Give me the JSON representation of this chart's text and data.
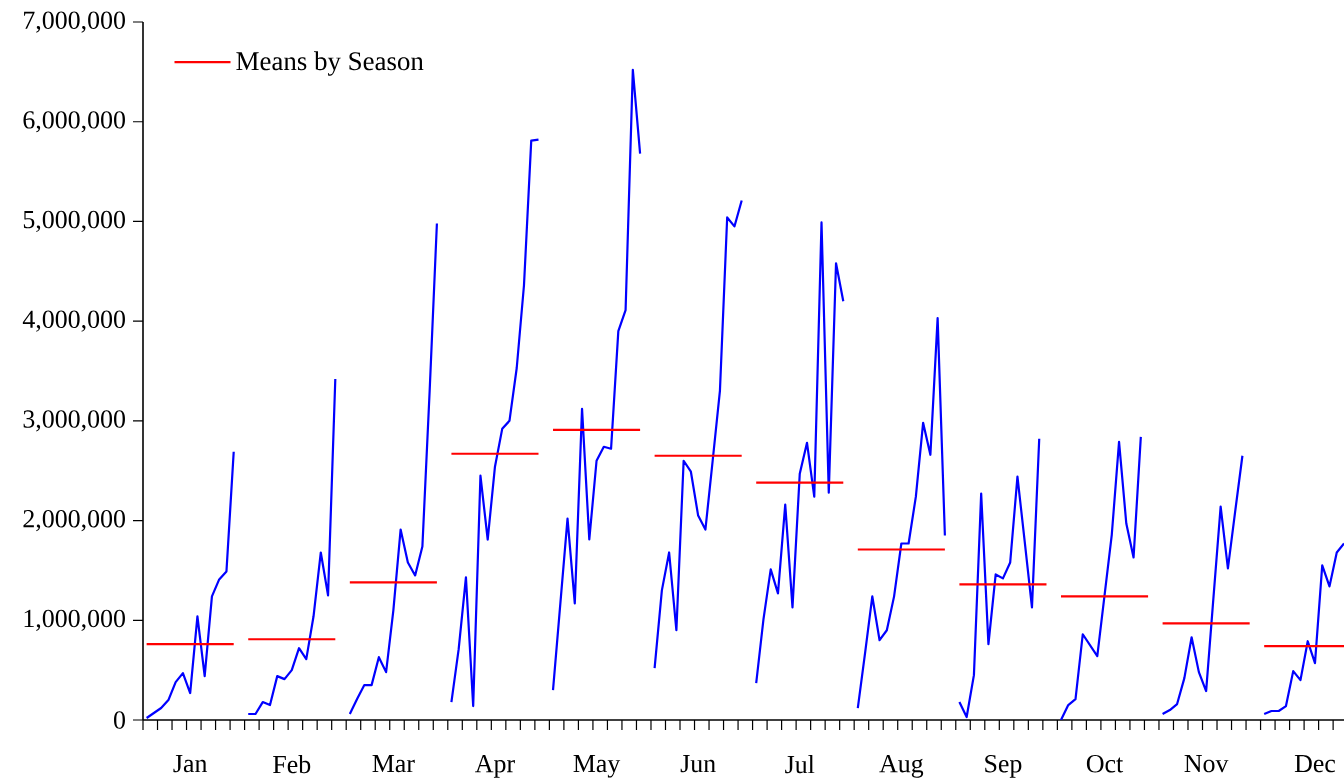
{
  "chart_data": {
    "type": "line",
    "categories": [
      null,
      null,
      null,
      null,
      null,
      null,
      "Jan",
      null,
      null,
      null,
      null,
      null,
      null,
      null,
      null,
      null,
      null,
      null,
      null,
      null,
      "Feb",
      null,
      null,
      null,
      null,
      null,
      null,
      null,
      null,
      null,
      null,
      null,
      null,
      null,
      "Mar",
      null,
      null,
      null,
      null,
      null,
      null,
      null,
      null,
      null,
      null,
      null,
      null,
      null,
      "Apr",
      null,
      null,
      null,
      null,
      null,
      null,
      null,
      null,
      null,
      null,
      null,
      null,
      null,
      "May",
      null,
      null,
      null,
      null,
      null,
      null,
      null,
      null,
      null,
      null,
      null,
      null,
      null,
      "Jun",
      null,
      null,
      null,
      null,
      null,
      null,
      null,
      null,
      null,
      null,
      null,
      null,
      null,
      "Jul",
      null,
      null,
      null,
      null,
      null,
      null,
      null,
      null,
      null,
      null,
      null,
      null,
      null,
      "Aug",
      null,
      null,
      null,
      null,
      null,
      null,
      null,
      null,
      null,
      null,
      null,
      null,
      null,
      "Sep",
      null,
      null,
      null,
      null,
      null,
      null,
      null,
      null,
      null,
      null,
      null,
      null,
      null,
      "Oct",
      null,
      null,
      null,
      null,
      null,
      null,
      null,
      null,
      null,
      null,
      null,
      null,
      null,
      "Nov",
      null,
      null,
      null,
      null,
      null,
      null,
      null,
      null,
      null,
      null,
      null,
      null,
      null,
      null,
      "Dec",
      null,
      null,
      null,
      null
    ],
    "series": [
      {
        "color": "#0000ff",
        "values": [
          20000,
          70000,
          120000,
          200000,
          380000,
          470000,
          270000,
          1040000,
          440000,
          1240000,
          1410000,
          1490000,
          2690000,
          null,
          60000,
          60000,
          180000,
          150000,
          440000,
          410000,
          500000,
          720000,
          610000,
          1040000,
          1680000,
          1250000,
          3420000,
          null,
          60000,
          210000,
          350000,
          350000,
          630000,
          480000,
          1100000,
          1910000,
          1580000,
          1450000,
          1740000,
          3300000,
          4980000,
          null,
          180000,
          710000,
          1430000,
          140000,
          2450000,
          1810000,
          2540000,
          2920000,
          3000000,
          3530000,
          4360000,
          5810000,
          5820000,
          null,
          300000,
          1160000,
          2020000,
          1170000,
          3120000,
          1810000,
          2600000,
          2740000,
          2720000,
          3900000,
          4110000,
          6520000,
          5680000,
          null,
          520000,
          1300000,
          1680000,
          900000,
          2600000,
          2490000,
          2050000,
          1910000,
          2600000,
          3300000,
          5040000,
          4950000,
          5210000,
          null,
          370000,
          1010000,
          1510000,
          1270000,
          2160000,
          1130000,
          2470000,
          2780000,
          2240000,
          4990000,
          2280000,
          4580000,
          4200000,
          null,
          120000,
          670000,
          1240000,
          800000,
          900000,
          1240000,
          1770000,
          1770000,
          2240000,
          2980000,
          2660000,
          4030000,
          1850000,
          null,
          180000,
          30000,
          450000,
          2270000,
          760000,
          1460000,
          1420000,
          1580000,
          2440000,
          1790000,
          1130000,
          2820000,
          null,
          null,
          0,
          150000,
          210000,
          860000,
          750000,
          640000,
          1250000,
          1860000,
          2790000,
          1970000,
          1630000,
          2840000,
          null,
          null,
          60000,
          100000,
          160000,
          420000,
          830000,
          480000,
          290000,
          1220000,
          2140000,
          1520000,
          2090000,
          2650000,
          null,
          null,
          60000,
          90000,
          90000,
          140000,
          490000,
          400000,
          790000,
          570000,
          1550000,
          1340000,
          1680000,
          1770000
        ]
      },
      {
        "name": "Means by Season",
        "color": "#ff0000",
        "values": [
          760000,
          760000,
          760000,
          760000,
          760000,
          760000,
          760000,
          760000,
          760000,
          760000,
          760000,
          760000,
          760000,
          null,
          810000,
          810000,
          810000,
          810000,
          810000,
          810000,
          810000,
          810000,
          810000,
          810000,
          810000,
          810000,
          810000,
          null,
          1380000,
          1380000,
          1380000,
          1380000,
          1380000,
          1380000,
          1380000,
          1380000,
          1380000,
          1380000,
          1380000,
          1380000,
          1380000,
          null,
          2670000,
          2670000,
          2670000,
          2670000,
          2670000,
          2670000,
          2670000,
          2670000,
          2670000,
          2670000,
          2670000,
          2670000,
          2670000,
          null,
          2910000,
          2910000,
          2910000,
          2910000,
          2910000,
          2910000,
          2910000,
          2910000,
          2910000,
          2910000,
          2910000,
          2910000,
          2910000,
          null,
          2650000,
          2650000,
          2650000,
          2650000,
          2650000,
          2650000,
          2650000,
          2650000,
          2650000,
          2650000,
          2650000,
          2650000,
          2650000,
          null,
          2380000,
          2380000,
          2380000,
          2380000,
          2380000,
          2380000,
          2380000,
          2380000,
          2380000,
          2380000,
          2380000,
          2380000,
          2380000,
          null,
          1710000,
          1710000,
          1710000,
          1710000,
          1710000,
          1710000,
          1710000,
          1710000,
          1710000,
          1710000,
          1710000,
          1710000,
          1710000,
          null,
          1360000,
          1360000,
          1360000,
          1360000,
          1360000,
          1360000,
          1360000,
          1360000,
          1360000,
          1360000,
          1360000,
          1360000,
          1360000,
          null,
          1240000,
          1240000,
          1240000,
          1240000,
          1240000,
          1240000,
          1240000,
          1240000,
          1240000,
          1240000,
          1240000,
          1240000,
          1240000,
          null,
          970000,
          970000,
          970000,
          970000,
          970000,
          970000,
          970000,
          970000,
          970000,
          970000,
          970000,
          970000,
          970000,
          null,
          740000,
          740000,
          740000,
          740000,
          740000,
          740000,
          740000,
          740000,
          740000,
          740000,
          740000,
          740000
        ]
      }
    ],
    "ylim": [
      0,
      7000000
    ],
    "yticks": [
      0,
      {
        "value": 1000000,
        "label": "1,000,000"
      },
      {
        "value": 2000000,
        "label": "2,000,000"
      },
      {
        "value": 3000000,
        "label": "3,000,000"
      },
      {
        "value": 4000000,
        "label": "4,000,000"
      },
      {
        "value": 5000000,
        "label": "5,000,000"
      },
      {
        "value": 6000000,
        "label": "6,000,000"
      },
      {
        "value": 7000000,
        "label": "7,000,000"
      }
    ],
    "legend": "top left",
    "marker": "none",
    "line_style": "solid"
  }
}
